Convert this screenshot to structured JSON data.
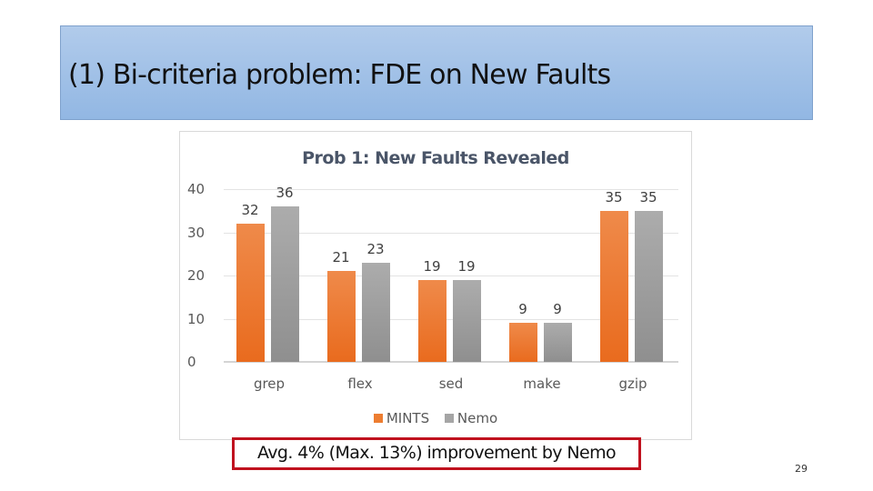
{
  "slide": {
    "title": "(1) Bi-criteria problem: FDE on New Faults",
    "callout": "Avg. 4% (Max. 13%) improvement by Nemo",
    "page_number": "29",
    "colors": {
      "title_bg_top": "#b1cbeb",
      "title_bg_bottom": "#92b7e3",
      "callout_border": "#c0121f",
      "mints": "#ed7d31",
      "nemo": "#a5a5a5"
    }
  },
  "chart_data": {
    "type": "bar",
    "title": "Prob 1: New Faults Revealed",
    "categories": [
      "grep",
      "flex",
      "sed",
      "make",
      "gzip"
    ],
    "series": [
      {
        "name": "MINTS",
        "values": [
          32,
          21,
          19,
          9,
          35
        ]
      },
      {
        "name": "Nemo",
        "values": [
          36,
          23,
          19,
          9,
          35
        ]
      }
    ],
    "xlabel": "",
    "ylabel": "",
    "ylim": [
      0,
      40
    ],
    "yticks": [
      "0",
      "10",
      "20",
      "30",
      "40"
    ],
    "grid": true,
    "legend_position": "bottom"
  }
}
